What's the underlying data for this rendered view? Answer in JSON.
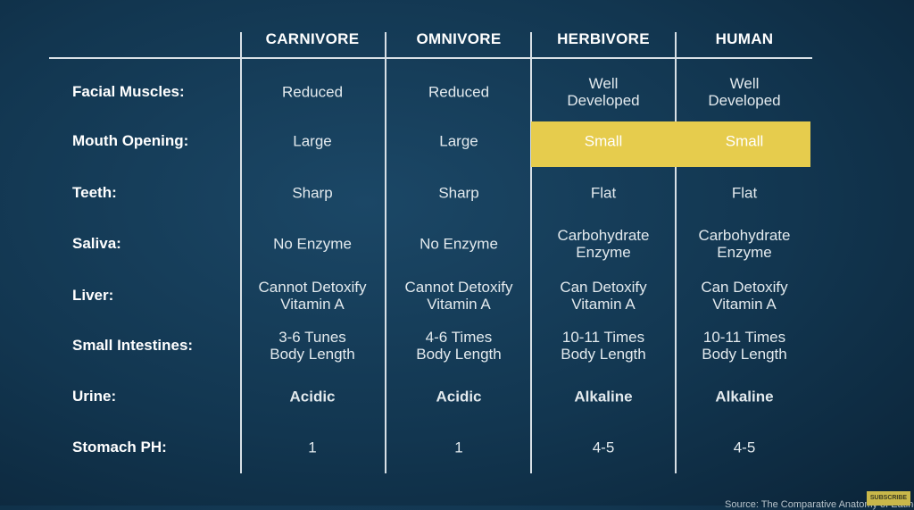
{
  "columns": [
    "CARNIVORE",
    "OMNIVORE",
    "HERBIVORE",
    "HUMAN"
  ],
  "rows": [
    {
      "label": "Facial Muscles:",
      "values": [
        [
          "Reduced"
        ],
        [
          "Reduced"
        ],
        [
          "Well",
          "Developed"
        ],
        [
          "Well",
          "Developed"
        ]
      ]
    },
    {
      "label": "Mouth Opening:",
      "values": [
        [
          "Large"
        ],
        [
          "Large"
        ],
        [
          "Small"
        ],
        [
          "Small"
        ]
      ],
      "highlight": [
        2,
        3
      ]
    },
    {
      "label": "Teeth:",
      "values": [
        [
          "Sharp"
        ],
        [
          "Sharp"
        ],
        [
          "Flat"
        ],
        [
          "Flat"
        ]
      ]
    },
    {
      "label": "Saliva:",
      "values": [
        [
          "No Enzyme"
        ],
        [
          "No Enzyme"
        ],
        [
          "Carbohydrate",
          "Enzyme"
        ],
        [
          "Carbohydrate",
          "Enzyme"
        ]
      ]
    },
    {
      "label": "Liver:",
      "values": [
        [
          "Cannot Detoxify",
          "Vitamin A"
        ],
        [
          "Cannot Detoxify",
          "Vitamin A"
        ],
        [
          "Can Detoxify",
          "Vitamin A"
        ],
        [
          "Can Detoxify",
          "Vitamin A"
        ]
      ]
    },
    {
      "label": "Small Intestines:",
      "values": [
        [
          "3-6 Tunes",
          "Body Length"
        ],
        [
          "4-6 Times",
          "Body Length"
        ],
        [
          "10-11 Times",
          "Body Length"
        ],
        [
          "10-11 Times",
          "Body Length"
        ]
      ]
    },
    {
      "label": "Urine:",
      "values": [
        [
          "Acidic"
        ],
        [
          "Acidic"
        ],
        [
          "Alkaline"
        ],
        [
          "Alkaline"
        ]
      ],
      "bold": true
    },
    {
      "label": "Stomach PH:",
      "values": [
        [
          "1"
        ],
        [
          "1"
        ],
        [
          "4-5"
        ],
        [
          "4-5"
        ]
      ]
    }
  ],
  "highlight_color": "#e6cc4d",
  "source": "Source: The Comparative Anatomy of Eating",
  "subscribe_label": "SUBSCRIBE"
}
